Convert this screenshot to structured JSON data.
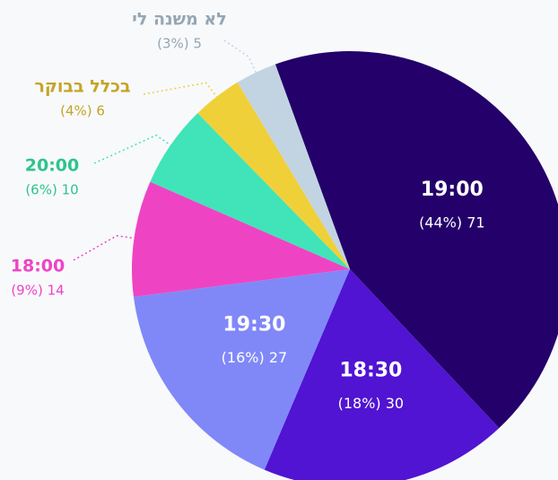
{
  "chart_data": {
    "type": "pie",
    "categories": [
      "19:00",
      "18:30",
      "19:30",
      "18:00",
      "20:00",
      "בכלל בבוקר",
      "לא משנה לי"
    ],
    "values": [
      71,
      30,
      27,
      14,
      10,
      6,
      5
    ],
    "value_labels": [
      "(44%) 71",
      "(18%) 30",
      "(16%) 27",
      "(9%) 14",
      "(6%) 10",
      "(4%) 6",
      "(3%) 5"
    ],
    "colors": [
      "#24006a",
      "#5014d2",
      "#8088f8",
      "#ee44c4",
      "#40e4b8",
      "#f0d038",
      "#c2d4e2"
    ],
    "label_colors": [
      "#ffffff",
      "#ffffff",
      "#ffffff",
      "#ee44c4",
      "#2ec48c",
      "#c4a424",
      "#94a6b4"
    ]
  }
}
